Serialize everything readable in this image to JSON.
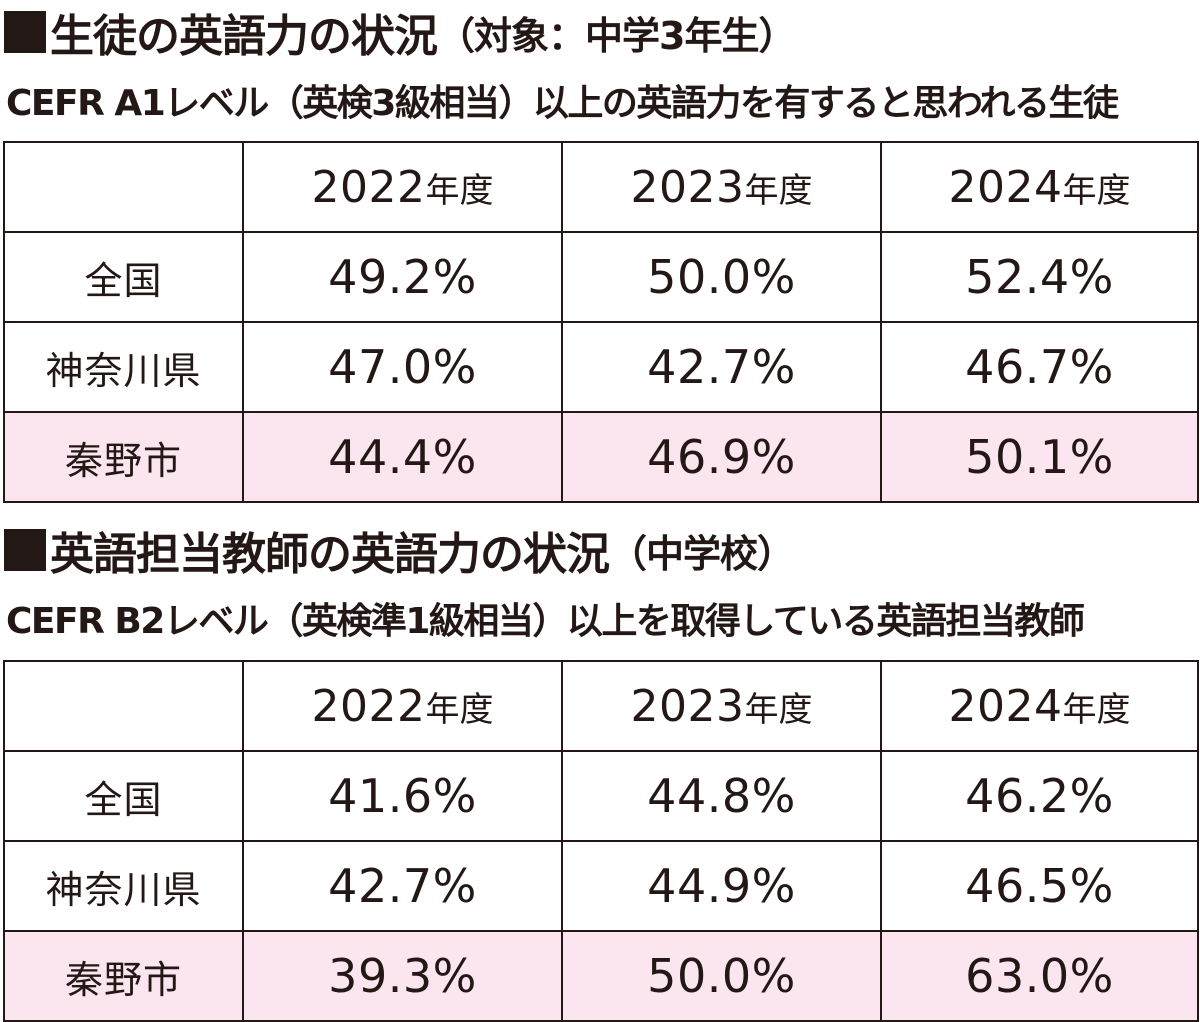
{
  "colors": {
    "text": "#231815",
    "border": "#231815",
    "highlight_row": "#fbe5ef",
    "background": "#ffffff"
  },
  "sections": [
    {
      "title_icon": "black-square-icon",
      "title_main": "生徒の英語力の状況",
      "title_paren": "（対象：中学3年生）",
      "subtitle": "CEFR A1レベル（英検3級相当）以上の英語力を有すると思われる生徒",
      "table": {
        "corner": "",
        "columns": [
          {
            "year": "2022",
            "suffix": "年度"
          },
          {
            "year": "2023",
            "suffix": "年度"
          },
          {
            "year": "2024",
            "suffix": "年度"
          }
        ],
        "rows": [
          {
            "label": "全国",
            "values": [
              "49.2%",
              "50.0%",
              "52.4%"
            ],
            "highlight": false
          },
          {
            "label": "神奈川県",
            "values": [
              "47.0%",
              "42.7%",
              "46.7%"
            ],
            "highlight": false
          },
          {
            "label": "秦野市",
            "values": [
              "44.4%",
              "46.9%",
              "50.1%"
            ],
            "highlight": true
          }
        ]
      }
    },
    {
      "title_icon": "black-square-icon",
      "title_main": "英語担当教師の英語力の状況",
      "title_paren": "（中学校）",
      "subtitle": "CEFR B2レベル（英検準1級相当）以上を取得している英語担当教師",
      "table": {
        "corner": "",
        "columns": [
          {
            "year": "2022",
            "suffix": "年度"
          },
          {
            "year": "2023",
            "suffix": "年度"
          },
          {
            "year": "2024",
            "suffix": "年度"
          }
        ],
        "rows": [
          {
            "label": "全国",
            "values": [
              "41.6%",
              "44.8%",
              "46.2%"
            ],
            "highlight": false
          },
          {
            "label": "神奈川県",
            "values": [
              "42.7%",
              "44.9%",
              "46.5%"
            ],
            "highlight": false
          },
          {
            "label": "秦野市",
            "values": [
              "39.3%",
              "50.0%",
              "63.0%"
            ],
            "highlight": true
          }
        ]
      }
    }
  ]
}
